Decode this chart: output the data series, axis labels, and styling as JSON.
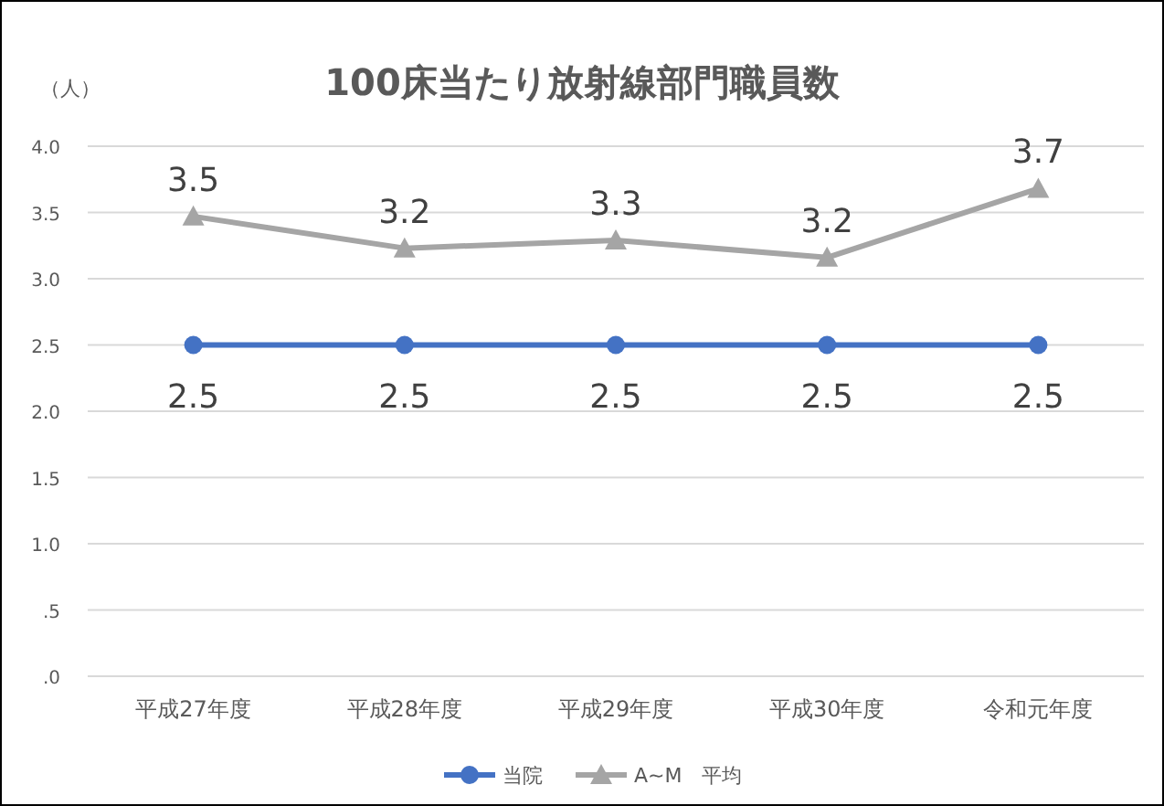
{
  "chart_data": {
    "type": "line",
    "title": "100床当たり放射線部門職員数",
    "ylabel": "（人）",
    "categories": [
      "平成27年度",
      "平成28年度",
      "平成29年度",
      "平成30年度",
      "令和元年度"
    ],
    "series": [
      {
        "name": "当院",
        "color": "#4472c4",
        "marker": "circle",
        "values": [
          2.5,
          2.5,
          2.5,
          2.5,
          2.5
        ],
        "value_labels": [
          "2.5",
          "2.5",
          "2.5",
          "2.5",
          "2.5"
        ]
      },
      {
        "name": "A~M　平均",
        "color": "#a5a5a5",
        "marker": "triangle",
        "values": [
          3.47,
          3.23,
          3.29,
          3.16,
          3.68
        ],
        "value_labels": [
          "3.5",
          "3.2",
          "3.3",
          "3.2",
          "3.7"
        ]
      }
    ],
    "ylim": [
      0,
      4
    ],
    "yticks": [
      {
        "value": 0,
        "label": ".0"
      },
      {
        "value": 0.5,
        "label": ".5"
      },
      {
        "value": 1,
        "label": "1.0"
      },
      {
        "value": 1.5,
        "label": "1.5"
      },
      {
        "value": 2,
        "label": "2.0"
      },
      {
        "value": 2.5,
        "label": "2.5"
      },
      {
        "value": 3,
        "label": "3.0"
      },
      {
        "value": 3.5,
        "label": "3.5"
      },
      {
        "value": 4,
        "label": "4.0"
      }
    ],
    "grid": "y",
    "legend": "bottom",
    "line_style": "solid"
  }
}
